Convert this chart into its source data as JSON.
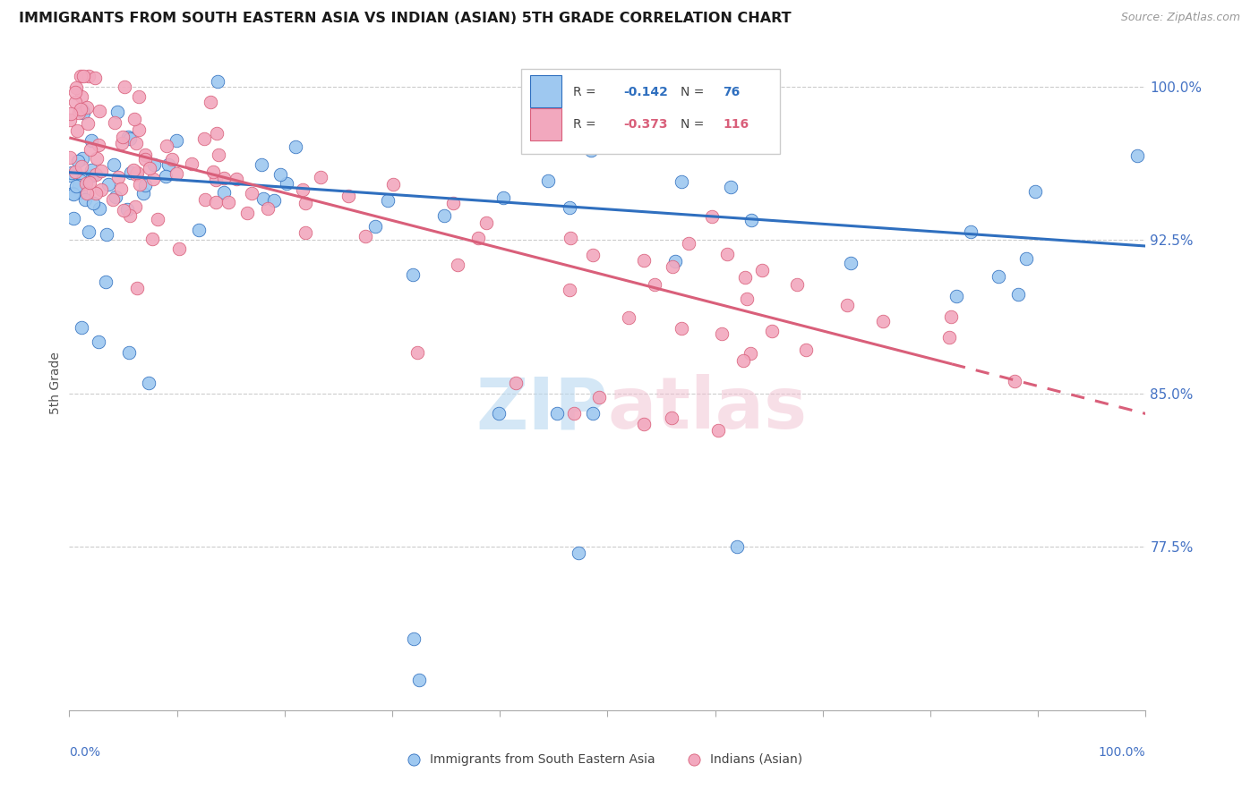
{
  "title": "IMMIGRANTS FROM SOUTH EASTERN ASIA VS INDIAN (ASIAN) 5TH GRADE CORRELATION CHART",
  "source": "Source: ZipAtlas.com",
  "ylabel": "5th Grade",
  "ytick_labels": [
    "100.0%",
    "92.5%",
    "85.0%",
    "77.5%"
  ],
  "ytick_values": [
    1.0,
    0.925,
    0.85,
    0.775
  ],
  "ymin": 0.695,
  "ymax": 1.015,
  "xmin": 0.0,
  "xmax": 1.0,
  "blue_color": "#9EC8F0",
  "pink_color": "#F2A8BE",
  "line_blue": "#2F6FBF",
  "line_pink": "#D95F7A",
  "text_blue": "#4472C4",
  "legend_label1": "Immigrants from South Eastern Asia",
  "legend_label2": "Indians (Asian)",
  "blue_line_start": 0.958,
  "blue_line_end": 0.922,
  "pink_line_start": 0.975,
  "pink_line_end": 0.84
}
